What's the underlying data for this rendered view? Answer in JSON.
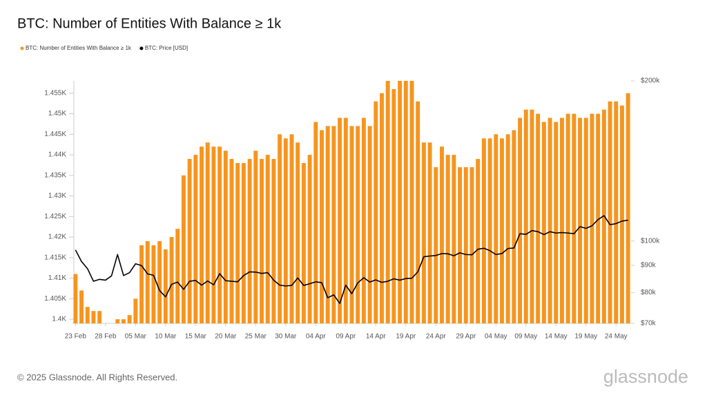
{
  "chart_data": {
    "type": "bar",
    "title": "BTC: Number of Entities With Balance ≥ 1k",
    "categories": [
      "23 Feb",
      null,
      null,
      null,
      null,
      "28 Feb",
      null,
      null,
      null,
      null,
      "05 Mar",
      null,
      null,
      null,
      null,
      "10 Mar",
      null,
      null,
      null,
      null,
      "15 Mar",
      null,
      null,
      null,
      null,
      "20 Mar",
      null,
      null,
      null,
      null,
      "25 Mar",
      null,
      null,
      null,
      null,
      "30 Mar",
      null,
      null,
      null,
      null,
      "04 Apr",
      null,
      null,
      null,
      null,
      "09 Apr",
      null,
      null,
      null,
      null,
      "14 Apr",
      null,
      null,
      null,
      null,
      "19 Apr",
      null,
      null,
      null,
      null,
      "24 Apr",
      null,
      null,
      null,
      null,
      "29 Apr",
      null,
      null,
      null,
      null,
      "04 May",
      null,
      null,
      null,
      null,
      "09 May",
      null,
      null,
      null,
      null,
      "14 May",
      null,
      null,
      null,
      null,
      "19 May",
      null,
      null,
      null,
      null,
      "24 May",
      null,
      null
    ],
    "series": [
      {
        "name": "BTC: Number of Entities With Balance ≥ 1k",
        "color": "#f5951f",
        "type": "bar",
        "values": [
          1411,
          1407,
          1403,
          1402,
          1402,
          1399,
          1399,
          1400,
          1400,
          1401,
          1405,
          1418,
          1419,
          1418,
          1419,
          1417,
          1420,
          1422,
          1435,
          1439,
          1440,
          1442,
          1443,
          1442,
          1442,
          1441,
          1439,
          1438,
          1438,
          1439,
          1441,
          1439,
          1440,
          1439,
          1445,
          1444,
          1445,
          1443,
          1438,
          1440,
          1448,
          1446,
          1447,
          1447,
          1449,
          1449,
          1447,
          1447,
          1449,
          1447,
          1453,
          1455,
          1458,
          1456,
          1458,
          1458,
          1458,
          1453,
          1443,
          1443,
          1437,
          1442,
          1440,
          1440,
          1437,
          1437,
          1437,
          1439,
          1444,
          1444,
          1445,
          1444,
          1445,
          1446,
          1449,
          1451,
          1451,
          1450,
          1448,
          1449,
          1448,
          1449,
          1450,
          1450,
          1449,
          1449,
          1450,
          1450,
          1451,
          1453,
          1453,
          1452,
          1455
        ]
      },
      {
        "name": "BTC: Price [USD]",
        "color": "#000000",
        "type": "line",
        "axis": "y2",
        "values": [
          96200,
          91500,
          88700,
          84000,
          84700,
          84400,
          86000,
          94300,
          86100,
          87200,
          90600,
          89900,
          86700,
          86200,
          80700,
          78500,
          82900,
          83700,
          81100,
          84000,
          84300,
          82600,
          84100,
          82700,
          86800,
          84200,
          84000,
          83800,
          86100,
          87500,
          87400,
          86900,
          87200,
          84400,
          82600,
          82300,
          82500,
          85200,
          82500,
          83100,
          83800,
          83500,
          78200,
          79200,
          76300,
          82600,
          79600,
          83400,
          85300,
          83700,
          84500,
          83600,
          84000,
          84900,
          84400,
          85000,
          85100,
          87500,
          93400,
          93700,
          93900,
          94700,
          94600,
          93800,
          95000,
          94300,
          94200,
          96500,
          96900,
          95900,
          94300,
          94700,
          96800,
          97000,
          103200,
          102900,
          104600,
          104100,
          102800,
          104100,
          103500,
          103700,
          103500,
          103200,
          106400,
          105600,
          106800,
          109700,
          111600,
          107300,
          107800,
          109000,
          109400
        ]
      }
    ],
    "ylim": [
      1399,
      1458
    ],
    "yticks": [
      {
        "value": 1400,
        "label": "1.4K"
      },
      {
        "value": 1405,
        "label": "1.405K"
      },
      {
        "value": 1410,
        "label": "1.41K"
      },
      {
        "value": 1415,
        "label": "1.415K"
      },
      {
        "value": 1420,
        "label": "1.42K"
      },
      {
        "value": 1425,
        "label": "1.425K"
      },
      {
        "value": 1430,
        "label": "1.43K"
      },
      {
        "value": 1435,
        "label": "1.435K"
      },
      {
        "value": 1440,
        "label": "1.44K"
      },
      {
        "value": 1445,
        "label": "1.445K"
      },
      {
        "value": 1450,
        "label": "1.45K"
      },
      {
        "value": 1455,
        "label": "1.455K"
      }
    ],
    "y2lim": [
      70000,
      200000
    ],
    "y2scale": "log",
    "y2ticks": [
      {
        "value": 70000,
        "label": "$70k"
      },
      {
        "value": 80000,
        "label": "$80k"
      },
      {
        "value": 90000,
        "label": "$90k"
      },
      {
        "value": 100000,
        "label": "$100k"
      },
      {
        "value": 200000,
        "label": "$200k"
      }
    ],
    "legend": "top-left"
  },
  "footer": "© 2025 Glassnode. All Rights Reserved.",
  "logo": "glassnode"
}
